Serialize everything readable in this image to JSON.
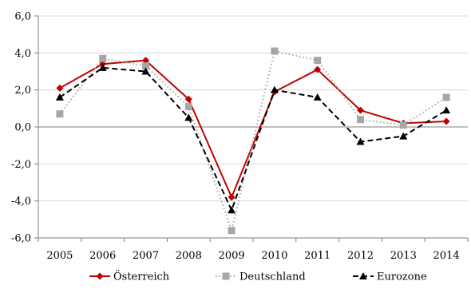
{
  "chart_data": {
    "type": "line",
    "title": "",
    "xlabel": "",
    "ylabel": "",
    "categories": [
      "2005",
      "2006",
      "2007",
      "2008",
      "2009",
      "2010",
      "2011",
      "2012",
      "2013",
      "2014"
    ],
    "ylim": [
      -6.0,
      6.0
    ],
    "yticks": [
      "-6,0",
      "-4,0",
      "-2,0",
      "0,0",
      "2,0",
      "4,0",
      "6,0"
    ],
    "ytick_values": [
      -6,
      -4,
      -2,
      0,
      2,
      4,
      6
    ],
    "grid": "horizontal",
    "legend_position": "bottom",
    "series": [
      {
        "name": "Österreich",
        "values": [
          2.1,
          3.4,
          3.6,
          1.5,
          -3.8,
          1.9,
          3.1,
          0.9,
          0.2,
          0.3
        ],
        "color": "#c00000",
        "line_style": "solid",
        "marker": "diamond"
      },
      {
        "name": "Deutschland",
        "values": [
          0.7,
          3.7,
          3.3,
          1.1,
          -5.6,
          4.1,
          3.6,
          0.4,
          0.1,
          1.6
        ],
        "color": "#a6a6a6",
        "line_style": "dotted",
        "marker": "square"
      },
      {
        "name": "Eurozone",
        "values": [
          1.6,
          3.2,
          3.0,
          0.5,
          -4.5,
          2.0,
          1.6,
          -0.8,
          -0.5,
          0.9
        ],
        "color": "#000000",
        "line_style": "dashed",
        "marker": "triangle"
      }
    ]
  }
}
